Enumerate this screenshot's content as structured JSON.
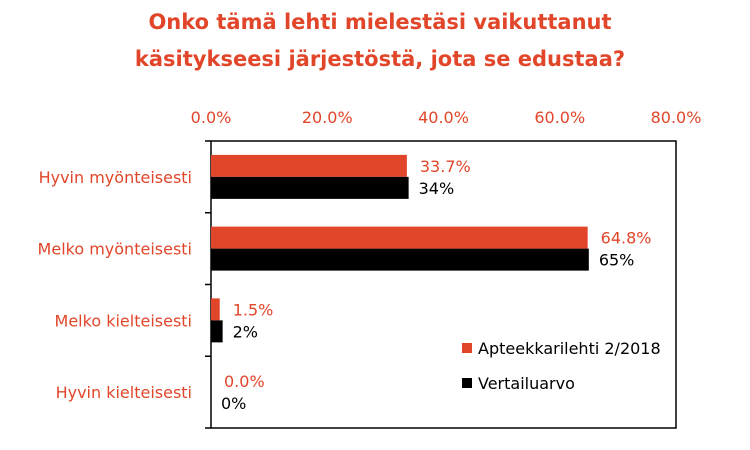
{
  "chart_data": {
    "type": "bar",
    "orientation": "horizontal",
    "title_lines": [
      "Onko tämä lehti mielestäsi vaikuttanut",
      "käsitykseesi järjestöstä, jota se edustaa?"
    ],
    "categories": [
      "Hyvin myönteisesti",
      "Melko myönteisesti",
      "Melko kielteisesti",
      "Hyvin kielteisesti"
    ],
    "series": [
      {
        "name": "Apteekkarilehti 2/2018",
        "color": "#e2462a",
        "values": [
          33.7,
          64.8,
          1.5,
          0.0
        ],
        "labels": [
          "33.7%",
          "64.8%",
          "1.5%",
          "0.0%"
        ]
      },
      {
        "name": "Vertailuarvo",
        "color": "#000000",
        "values": [
          34,
          65,
          2,
          0
        ],
        "labels": [
          "34%",
          "65%",
          "2%",
          "0%"
        ]
      }
    ],
    "xlim": [
      0,
      80
    ],
    "ticks": [
      0,
      20,
      40,
      60,
      80
    ],
    "tick_labels": [
      "0.0%",
      "20.0%",
      "40.0%",
      "60.0%",
      "80.0%"
    ],
    "axis_position": "top",
    "legend_position": "bottom-right",
    "grid": false
  }
}
